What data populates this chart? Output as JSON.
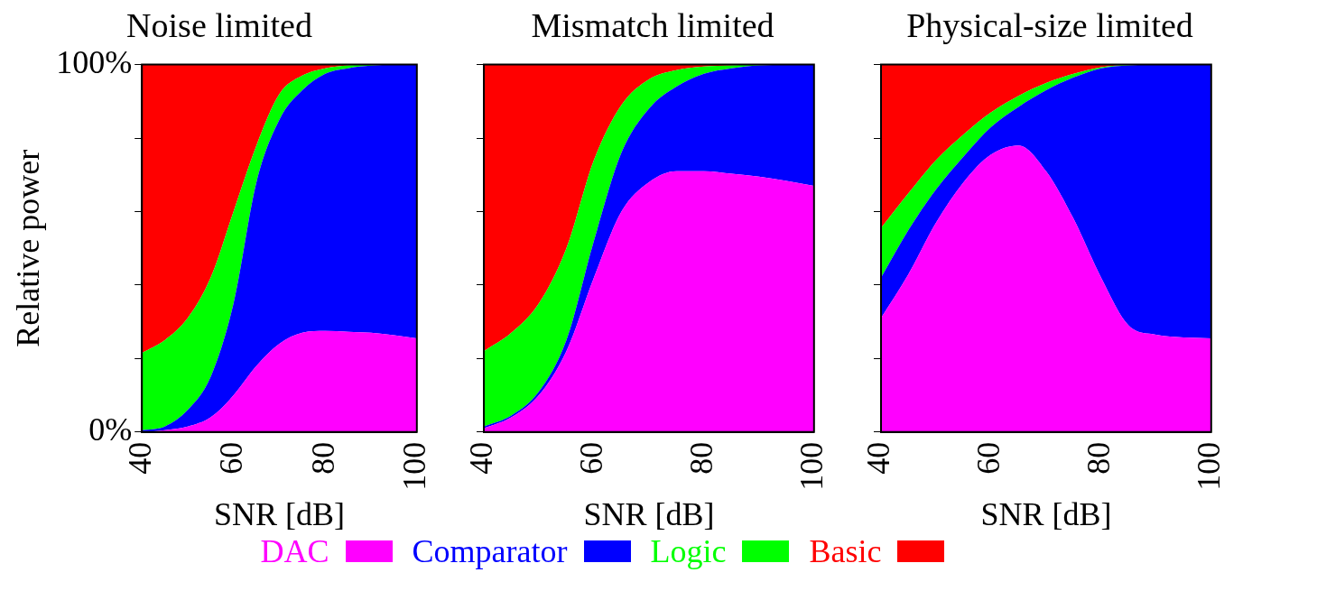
{
  "chart_data": [
    {
      "type": "area",
      "title": "Noise limited",
      "xlabel": "SNR [dB]",
      "ylabel": "Relative power",
      "stacked": true,
      "legend": "bottom",
      "grid": false,
      "x": [
        40,
        45,
        50,
        55,
        60,
        65,
        70,
        75,
        80,
        85,
        90,
        100
      ],
      "xlim": [
        40,
        100
      ],
      "xticks": [
        40,
        60,
        80,
        100
      ],
      "ylim": [
        0,
        100
      ],
      "yticks": [
        {
          "value": 0,
          "label": "0%"
        },
        {
          "value": 20,
          "label": null
        },
        {
          "value": 40,
          "label": null
        },
        {
          "value": 60,
          "label": null
        },
        {
          "value": 80,
          "label": null
        },
        {
          "value": 100,
          "label": "100%"
        }
      ],
      "series": [
        {
          "name": "DAC",
          "color": "#ff00ff",
          "values": [
            0,
            0.5,
            1.5,
            4,
            10,
            18,
            24,
            27,
            27.5,
            27.3,
            27,
            25.5
          ]
        },
        {
          "name": "Comparator",
          "color": "#0000ff",
          "values": [
            0.5,
            1,
            4.5,
            11,
            25,
            50,
            61,
            66,
            70,
            71.7,
            72.7,
            74.5
          ]
        },
        {
          "name": "Logic",
          "color": "#00ff00",
          "values": [
            21,
            23.5,
            25,
            27,
            25,
            10,
            7,
            4,
            1.5,
            0.8,
            0.3,
            0
          ]
        },
        {
          "name": "Basic",
          "color": "#ff0000",
          "values": [
            78.5,
            75,
            69,
            58,
            40,
            22,
            8,
            3,
            1,
            0.2,
            0,
            0
          ]
        }
      ]
    },
    {
      "type": "area",
      "title": "Mismatch limited",
      "xlabel": "SNR [dB]",
      "stacked": true,
      "grid": false,
      "tick_labels": "x",
      "x": [
        40,
        45,
        50,
        55,
        60,
        65,
        70,
        75,
        80,
        85,
        90,
        100
      ],
      "xlim": [
        40,
        100
      ],
      "xticks": [
        40,
        60,
        80,
        100
      ],
      "ylim": [
        0,
        100
      ],
      "yticks": [
        {
          "value": 0,
          "label": null
        },
        {
          "value": 20,
          "label": null
        },
        {
          "value": 40,
          "label": null
        },
        {
          "value": 60,
          "label": null
        },
        {
          "value": 80,
          "label": null
        },
        {
          "value": 100,
          "label": null
        }
      ],
      "series": [
        {
          "color": "#ff00ff",
          "values": [
            1,
            4,
            10,
            22,
            42,
            60,
            68,
            71,
            71,
            70.3,
            69.5,
            67
          ]
        },
        {
          "color": "#0000ff",
          "values": [
            0.5,
            0.5,
            1,
            3,
            10,
            16,
            20,
            23,
            26.5,
            28.7,
            30.3,
            33
          ]
        },
        {
          "color": "#00ff00",
          "values": [
            20.5,
            22.5,
            24,
            25,
            22,
            13,
            8,
            4.5,
            2,
            0.8,
            0.2,
            0
          ]
        },
        {
          "color": "#ff0000",
          "values": [
            78,
            73,
            65,
            50,
            26,
            11,
            4,
            1.5,
            0.5,
            0.2,
            0,
            0
          ]
        }
      ]
    },
    {
      "type": "area",
      "title": "Physical-size limited",
      "xlabel": "SNR [dB]",
      "stacked": true,
      "grid": false,
      "tick_labels": "x",
      "x": [
        40,
        45,
        50,
        55,
        60,
        65,
        70,
        75,
        80,
        85,
        90,
        100
      ],
      "xlim": [
        40,
        100
      ],
      "xticks": [
        40,
        60,
        80,
        100
      ],
      "ylim": [
        0,
        100
      ],
      "yticks": [
        {
          "value": 0,
          "label": null
        },
        {
          "value": 20,
          "label": null
        },
        {
          "value": 40,
          "label": null
        },
        {
          "value": 60,
          "label": null
        },
        {
          "value": 80,
          "label": null
        },
        {
          "value": 100,
          "label": null
        }
      ],
      "series": [
        {
          "color": "#ff00ff",
          "values": [
            31,
            43,
            57,
            68,
            75.5,
            78,
            71,
            58,
            42,
            29,
            26.5,
            25.5
          ]
        },
        {
          "color": "#0000ff",
          "values": [
            11,
            12,
            9,
            7,
            7.5,
            10.5,
            22,
            38.5,
            57,
            70.8,
            73.5,
            74.5
          ]
        },
        {
          "color": "#00ff00",
          "values": [
            13.5,
            10,
            8,
            6,
            4,
            3,
            2,
            1,
            0.3,
            0.1,
            0,
            0
          ]
        },
        {
          "color": "#ff0000",
          "values": [
            44.5,
            35,
            26,
            19,
            13,
            8.5,
            5,
            2.5,
            0.7,
            0.1,
            0,
            0
          ]
        }
      ]
    }
  ]
}
